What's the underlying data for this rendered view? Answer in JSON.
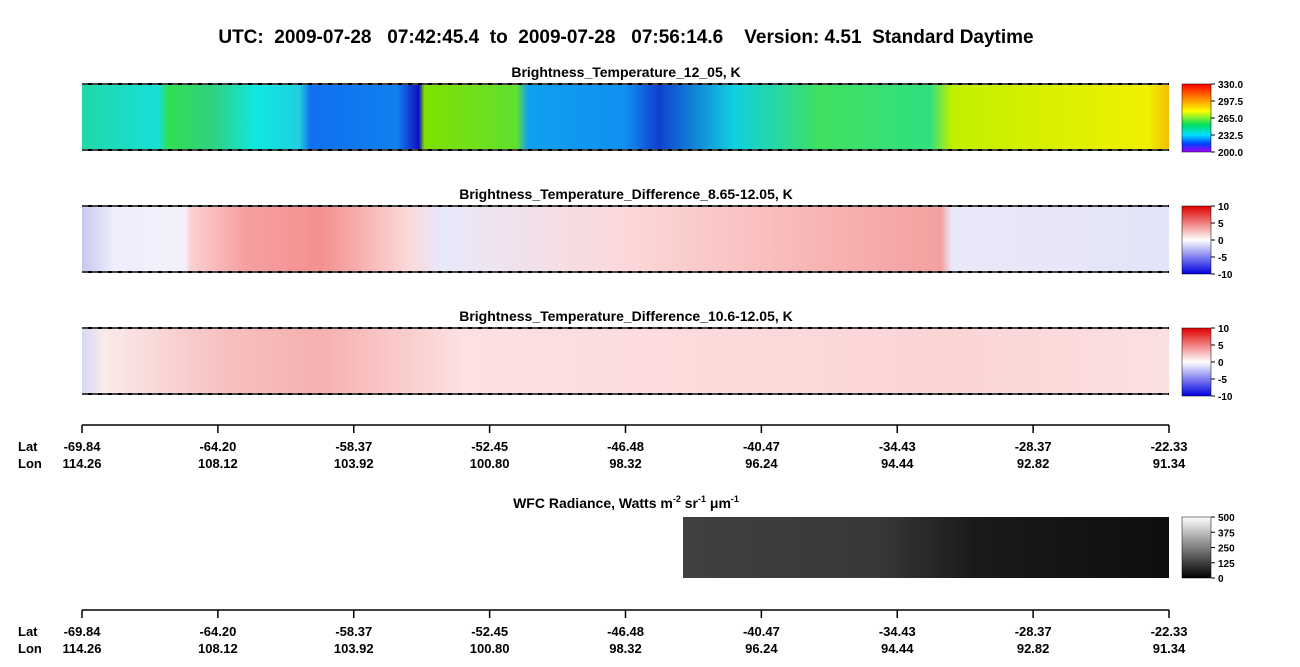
{
  "title": "UTC:  2009-07-28   07:42:45.4  to  2009-07-28   07:56:14.6    Version: 4.51  Standard Daytime",
  "panels": [
    {
      "title": "Brightness_Temperature_12_05, K",
      "colorbar": [
        "330.0",
        "297.5",
        "265.0",
        "232.5",
        "200.0"
      ]
    },
    {
      "title": "Brightness_Temperature_Difference_8.65-12.05, K",
      "colorbar": [
        "10",
        "5",
        "0",
        "-5",
        "-10"
      ]
    },
    {
      "title": "Brightness_Temperature_Difference_10.6-12.05, K",
      "colorbar": [
        "10",
        "5",
        "0",
        "-5",
        "-10"
      ]
    }
  ],
  "wfc": {
    "title_parts": [
      "WFC Radiance, Watts m",
      "-2",
      " sr",
      "-1",
      " μm",
      "-1"
    ],
    "colorbar": [
      "500",
      "375",
      "250",
      "125",
      "0"
    ]
  },
  "axes": [
    {
      "lat_label": "Lat",
      "lon_label": "Lon",
      "lat": [
        "-69.84",
        "-64.20",
        "-58.37",
        "-52.45",
        "-46.48",
        "-40.47",
        "-34.43",
        "-28.37",
        "-22.33"
      ],
      "lon": [
        "114.26",
        "108.12",
        "103.92",
        "100.80",
        "98.32",
        "96.24",
        "94.44",
        "92.82",
        "91.34"
      ]
    },
    {
      "lat_label": "Lat",
      "lon_label": "Lon",
      "lat": [
        "-69.84",
        "-64.20",
        "-58.37",
        "-52.45",
        "-46.48",
        "-40.47",
        "-34.43",
        "-28.37",
        "-22.33"
      ],
      "lon": [
        "114.26",
        "108.12",
        "103.92",
        "100.80",
        "98.32",
        "96.24",
        "94.44",
        "92.82",
        "91.34"
      ]
    }
  ]
}
